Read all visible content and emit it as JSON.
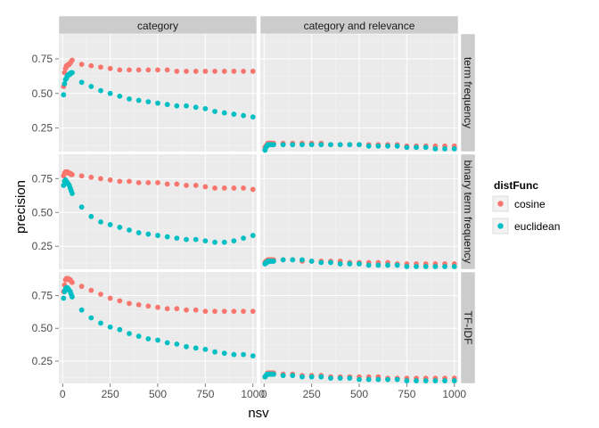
{
  "chart_data": {
    "type": "scatter",
    "facet_columns": [
      "category",
      "category and relevance"
    ],
    "facet_rows": [
      "term frequency",
      "binary term frequency",
      "TF-IDF"
    ],
    "xlabel": "nsv",
    "ylabel": "precision",
    "xlim": [
      -20,
      1020
    ],
    "ylim": [
      0.08,
      0.93
    ],
    "x_ticks": [
      0,
      250,
      500,
      750,
      1000
    ],
    "y_ticks": [
      0.25,
      0.5,
      0.75
    ],
    "x_tick_labels": [
      "0",
      "250",
      "500",
      "750",
      "1000"
    ],
    "y_tick_labels": [
      "0.25",
      "0.50",
      "0.75"
    ],
    "legend": {
      "title": "distFunc",
      "position": "right",
      "entries": [
        {
          "name": "cosine",
          "color": "#F8766D"
        },
        {
          "name": "euclidean",
          "color": "#00BFC4"
        }
      ]
    },
    "colors": {
      "cosine": "#F8766D",
      "euclidean": "#00BFC4",
      "panel_bg": "#ebebeb",
      "grid": "#ffffff",
      "strip_bg": "#cccccc"
    },
    "nsv_values": [
      5,
      10,
      15,
      20,
      25,
      30,
      35,
      40,
      45,
      50,
      100,
      150,
      200,
      250,
      300,
      350,
      400,
      450,
      500,
      550,
      600,
      650,
      700,
      750,
      800,
      850,
      900,
      950,
      1000
    ],
    "panels": [
      {
        "row": "term frequency",
        "col": "category",
        "series": [
          {
            "name": "cosine",
            "y": [
              0.55,
              0.65,
              0.68,
              0.7,
              0.7,
              0.71,
              0.71,
              0.72,
              0.73,
              0.74,
              0.71,
              0.7,
              0.69,
              0.68,
              0.67,
              0.67,
              0.67,
              0.67,
              0.67,
              0.67,
              0.66,
              0.66,
              0.66,
              0.66,
              0.66,
              0.66,
              0.66,
              0.66,
              0.66
            ]
          },
          {
            "name": "euclidean",
            "y": [
              0.49,
              0.57,
              0.6,
              0.61,
              0.63,
              0.63,
              0.64,
              0.64,
              0.65,
              0.65,
              0.58,
              0.55,
              0.52,
              0.5,
              0.48,
              0.46,
              0.45,
              0.44,
              0.43,
              0.42,
              0.41,
              0.41,
              0.4,
              0.39,
              0.37,
              0.36,
              0.35,
              0.34,
              0.33
            ]
          }
        ]
      },
      {
        "row": "term frequency",
        "col": "category and relevance",
        "series": [
          {
            "name": "cosine",
            "y": [
              0.11,
              0.12,
              0.13,
              0.14,
              0.14,
              0.14,
              0.14,
              0.14,
              0.14,
              0.14,
              0.14,
              0.14,
              0.14,
              0.14,
              0.14,
              0.13,
              0.13,
              0.13,
              0.13,
              0.13,
              0.13,
              0.13,
              0.13,
              0.12,
              0.12,
              0.12,
              0.12,
              0.12,
              0.12
            ]
          },
          {
            "name": "euclidean",
            "y": [
              0.09,
              0.11,
              0.12,
              0.13,
              0.13,
              0.13,
              0.13,
              0.13,
              0.13,
              0.13,
              0.13,
              0.13,
              0.13,
              0.13,
              0.13,
              0.13,
              0.13,
              0.13,
              0.13,
              0.12,
              0.12,
              0.12,
              0.12,
              0.11,
              0.11,
              0.11,
              0.1,
              0.1,
              0.1
            ]
          }
        ]
      },
      {
        "row": "binary term frequency",
        "col": "category",
        "series": [
          {
            "name": "cosine",
            "y": [
              0.77,
              0.79,
              0.8,
              0.8,
              0.8,
              0.79,
              0.79,
              0.79,
              0.78,
              0.78,
              0.77,
              0.76,
              0.75,
              0.74,
              0.73,
              0.73,
              0.72,
              0.72,
              0.72,
              0.71,
              0.71,
              0.7,
              0.7,
              0.69,
              0.68,
              0.68,
              0.68,
              0.68,
              0.67
            ]
          },
          {
            "name": "euclidean",
            "y": [
              0.7,
              0.73,
              0.74,
              0.73,
              0.72,
              0.71,
              0.7,
              0.68,
              0.66,
              0.64,
              0.54,
              0.47,
              0.43,
              0.41,
              0.39,
              0.37,
              0.35,
              0.34,
              0.33,
              0.32,
              0.31,
              0.3,
              0.3,
              0.29,
              0.28,
              0.28,
              0.29,
              0.31,
              0.33
            ]
          }
        ]
      },
      {
        "row": "binary term frequency",
        "col": "category and relevance",
        "series": [
          {
            "name": "cosine",
            "y": [
              0.13,
              0.14,
              0.14,
              0.15,
              0.15,
              0.15,
              0.15,
              0.15,
              0.15,
              0.15,
              0.15,
              0.15,
              0.14,
              0.14,
              0.14,
              0.14,
              0.14,
              0.13,
              0.13,
              0.13,
              0.13,
              0.13,
              0.12,
              0.12,
              0.12,
              0.12,
              0.12,
              0.12,
              0.12
            ]
          },
          {
            "name": "euclidean",
            "y": [
              0.12,
              0.13,
              0.13,
              0.14,
              0.14,
              0.14,
              0.14,
              0.14,
              0.14,
              0.14,
              0.15,
              0.15,
              0.15,
              0.14,
              0.13,
              0.13,
              0.12,
              0.12,
              0.12,
              0.11,
              0.11,
              0.11,
              0.11,
              0.1,
              0.1,
              0.1,
              0.1,
              0.1,
              0.1
            ]
          }
        ]
      },
      {
        "row": "TF-IDF",
        "col": "category",
        "series": [
          {
            "name": "cosine",
            "y": [
              0.78,
              0.83,
              0.87,
              0.88,
              0.88,
              0.88,
              0.87,
              0.87,
              0.86,
              0.85,
              0.82,
              0.79,
              0.76,
              0.73,
              0.71,
              0.69,
              0.68,
              0.67,
              0.66,
              0.65,
              0.65,
              0.64,
              0.64,
              0.63,
              0.63,
              0.63,
              0.63,
              0.63,
              0.63
            ]
          },
          {
            "name": "euclidean",
            "y": [
              0.73,
              0.78,
              0.8,
              0.81,
              0.81,
              0.8,
              0.79,
              0.78,
              0.76,
              0.74,
              0.64,
              0.58,
              0.54,
              0.51,
              0.49,
              0.46,
              0.44,
              0.42,
              0.41,
              0.39,
              0.38,
              0.36,
              0.35,
              0.34,
              0.32,
              0.31,
              0.3,
              0.3,
              0.29
            ]
          }
        ]
      },
      {
        "row": "TF-IDF",
        "col": "category and relevance",
        "series": [
          {
            "name": "cosine",
            "y": [
              0.13,
              0.14,
              0.15,
              0.16,
              0.16,
              0.16,
              0.16,
              0.16,
              0.16,
              0.16,
              0.15,
              0.15,
              0.14,
              0.14,
              0.14,
              0.13,
              0.13,
              0.13,
              0.13,
              0.13,
              0.13,
              0.12,
              0.12,
              0.12,
              0.12,
              0.12,
              0.12,
              0.12,
              0.12
            ]
          },
          {
            "name": "euclidean",
            "y": [
              0.13,
              0.14,
              0.15,
              0.15,
              0.15,
              0.15,
              0.15,
              0.15,
              0.15,
              0.15,
              0.14,
              0.14,
              0.13,
              0.13,
              0.13,
              0.12,
              0.12,
              0.12,
              0.11,
              0.11,
              0.11,
              0.11,
              0.11,
              0.1,
              0.1,
              0.1,
              0.1,
              0.1,
              0.1
            ]
          }
        ]
      }
    ]
  }
}
